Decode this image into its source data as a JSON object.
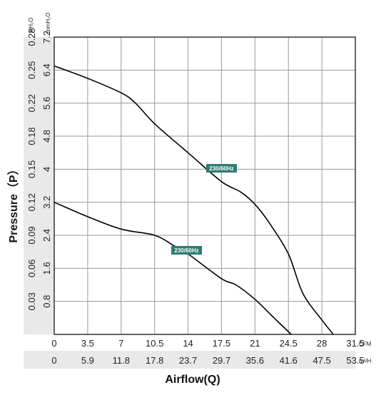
{
  "chart_data": {
    "type": "line",
    "xlabel": "Airflow(Q)",
    "ylabel": "Pressure（P）",
    "x_unit_cfm": "CFM",
    "x_unit_m3h": "m³/H",
    "y_unit_inh2o": "inH₂O",
    "y_unit_mmh2o": "mmH₂O",
    "x_ticks_cfm": [
      "0",
      "3.5",
      "7",
      "10.5",
      "14",
      "17.5",
      "21",
      "24.5",
      "28",
      "31.5"
    ],
    "x_ticks_m3h": [
      "0",
      "5.9",
      "11.8",
      "17.8",
      "23.7",
      "29.7",
      "35.6",
      "41.6",
      "47.5",
      "53.5"
    ],
    "y_ticks_mmh2o": [
      "0.8",
      "1.6",
      "2.4",
      "3.2",
      "4",
      "4.8",
      "5.6",
      "6.4",
      "7.2"
    ],
    "y_ticks_inh2o": [
      "0.03",
      "0.06",
      "0.09",
      "0.12",
      "0.15",
      "0.18",
      "0.22",
      "0.25",
      "0.28"
    ],
    "xlim_cfm": [
      0,
      31.5
    ],
    "ylim_mmh2o": [
      0,
      7.2
    ],
    "grid": true,
    "series": [
      {
        "name": "230/60Hz",
        "x": [
          0,
          3.5,
          7,
          8.5,
          10.5,
          14,
          17.5,
          19.5,
          21,
          22.5,
          24.5,
          26,
          28,
          29.2
        ],
        "values": [
          6.5,
          6.2,
          5.85,
          5.6,
          5.1,
          4.4,
          3.7,
          3.45,
          3.15,
          2.7,
          1.95,
          1.0,
          0.35,
          0.0
        ]
      },
      {
        "name": "230/60Hz",
        "x": [
          0,
          3.5,
          7,
          10.5,
          12.5,
          14,
          17.5,
          19,
          21,
          23,
          24.8
        ],
        "values": [
          3.2,
          2.85,
          2.55,
          2.4,
          2.15,
          1.95,
          1.35,
          1.2,
          0.85,
          0.4,
          0.0
        ]
      }
    ]
  }
}
